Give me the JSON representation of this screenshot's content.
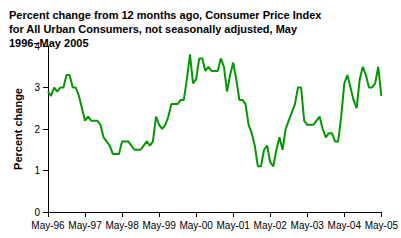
{
  "chart_data": {
    "type": "line",
    "title": "Percent change from 12 months ago, Consumer Price Index for All Urban Consumers, not seasonally adjusted, May 1996–May 2005",
    "ylabel": "Percent change",
    "categories": [
      "May-96",
      null,
      null,
      null,
      null,
      null,
      null,
      null,
      null,
      null,
      null,
      null,
      "May-97",
      null,
      null,
      null,
      null,
      null,
      null,
      null,
      null,
      null,
      null,
      null,
      "May-98",
      null,
      null,
      null,
      null,
      null,
      null,
      null,
      null,
      null,
      null,
      null,
      "May-99",
      null,
      null,
      null,
      null,
      null,
      null,
      null,
      null,
      null,
      null,
      null,
      "May-00",
      null,
      null,
      null,
      null,
      null,
      null,
      null,
      null,
      null,
      null,
      null,
      "May-01",
      null,
      null,
      null,
      null,
      null,
      null,
      null,
      null,
      null,
      null,
      null,
      "May-02",
      null,
      null,
      null,
      null,
      null,
      null,
      null,
      null,
      null,
      null,
      null,
      "May-03",
      null,
      null,
      null,
      null,
      null,
      null,
      null,
      null,
      null,
      null,
      null,
      "May-04",
      null,
      null,
      null,
      null,
      null,
      null,
      null,
      null,
      null,
      null,
      null,
      "May-05"
    ],
    "values": [
      2.9,
      2.8,
      3.0,
      2.9,
      3.0,
      3.0,
      3.3,
      3.3,
      3.0,
      3.0,
      2.8,
      2.5,
      2.2,
      2.3,
      2.2,
      2.2,
      2.2,
      2.1,
      1.8,
      1.7,
      1.6,
      1.4,
      1.4,
      1.4,
      1.7,
      1.7,
      1.7,
      1.6,
      1.5,
      1.5,
      1.5,
      1.6,
      1.7,
      1.6,
      1.7,
      2.3,
      2.1,
      2.0,
      2.1,
      2.3,
      2.6,
      2.6,
      2.6,
      2.7,
      2.7,
      3.2,
      3.8,
      3.1,
      3.2,
      3.7,
      3.7,
      3.4,
      3.5,
      3.4,
      3.4,
      3.4,
      3.7,
      3.5,
      2.9,
      3.3,
      3.6,
      3.2,
      2.7,
      2.7,
      2.6,
      2.1,
      1.9,
      1.6,
      1.1,
      1.1,
      1.5,
      1.6,
      1.2,
      1.1,
      1.5,
      1.8,
      1.5,
      2.0,
      2.2,
      2.4,
      2.6,
      3.0,
      3.0,
      2.2,
      2.1,
      2.1,
      2.1,
      2.2,
      2.3,
      2.0,
      1.8,
      1.9,
      1.9,
      1.7,
      1.7,
      2.3,
      3.1,
      3.3,
      3.0,
      2.7,
      2.5,
      3.2,
      3.5,
      3.3,
      3.0,
      3.0,
      3.1,
      3.5,
      2.8
    ],
    "color": "#009900",
    "ylim": [
      0,
      4
    ],
    "yticks": [
      0,
      1,
      2,
      3,
      4
    ],
    "grid": false
  }
}
